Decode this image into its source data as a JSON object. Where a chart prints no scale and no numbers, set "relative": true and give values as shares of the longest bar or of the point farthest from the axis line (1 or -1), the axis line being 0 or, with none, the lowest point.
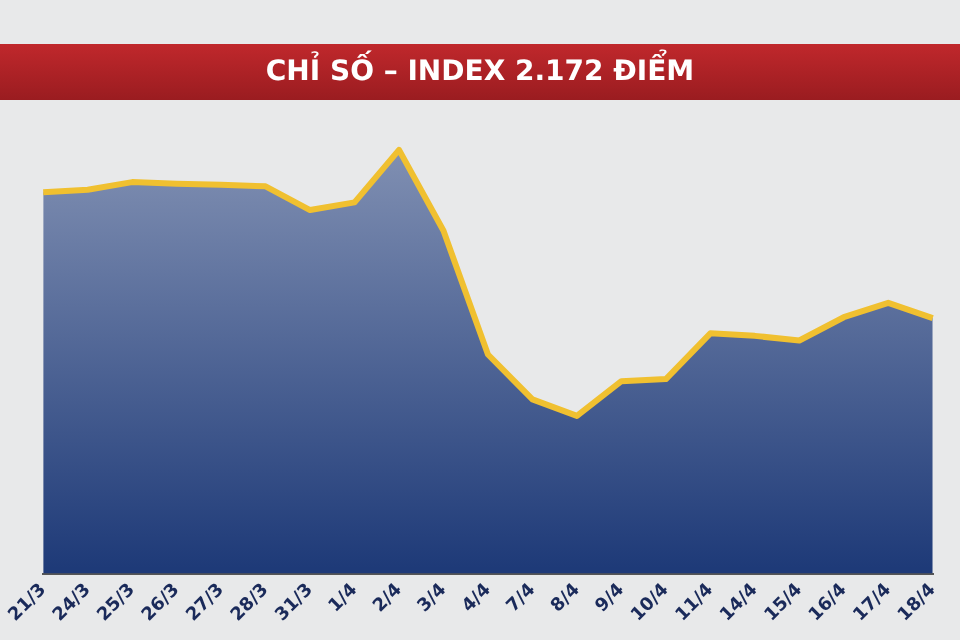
{
  "chart_data": {
    "type": "area",
    "title": "CHỈ SỐ – INDEX 2.172 ĐIỂM",
    "relative": true,
    "categories": [
      "21/3",
      "24/3",
      "25/3",
      "26/3",
      "27/3",
      "28/3",
      "31/3",
      "1/4",
      "2/4",
      "3/4",
      "4/4",
      "7/4",
      "8/4",
      "9/4",
      "10/4",
      "11/4",
      "14/4",
      "15/4",
      "16/4",
      "17/4",
      "18/4"
    ],
    "series": [
      {
        "color": "#1e3a78",
        "values": [
          0.9,
          0.906,
          0.924,
          0.92,
          0.918,
          0.914,
          0.858,
          0.876,
          1,
          0.809,
          0.517,
          0.411,
          0.372,
          0.454,
          0.459,
          0.567,
          0.561,
          0.55,
          0.605,
          0.639,
          0.603
        ]
      }
    ],
    "legend": false,
    "grid": false,
    "marker": "none",
    "line_style": "solid"
  }
}
